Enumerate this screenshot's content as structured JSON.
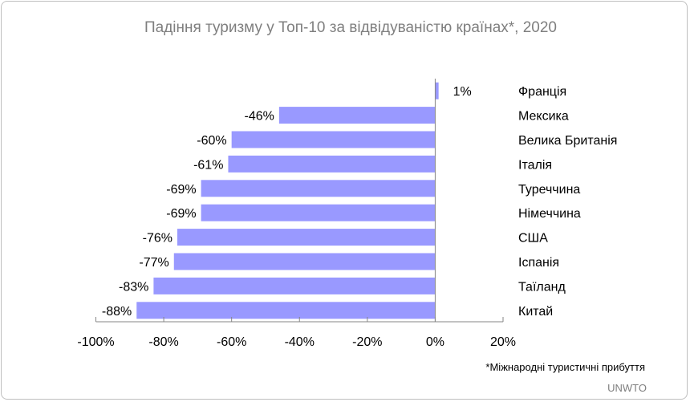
{
  "chart_data": {
    "type": "bar",
    "orientation": "horizontal",
    "title": "Падіння туризму у Топ-10 за відвідуваністю країнах*, 2020",
    "categories": [
      "Франція",
      "Мексика",
      "Велика Британія",
      "Італія",
      "Туреччина",
      "Німеччина",
      "США",
      "Іспанія",
      "Таїланд",
      "Китай"
    ],
    "values": [
      1,
      -46,
      -60,
      -61,
      -69,
      -69,
      -76,
      -77,
      -83,
      -88
    ],
    "data_labels": [
      "1%",
      "-46%",
      "-60%",
      "-61%",
      "-69%",
      "-69%",
      "-76%",
      "-77%",
      "-83%",
      "-88%"
    ],
    "xlim": [
      -100,
      20
    ],
    "xticks": [
      -100,
      -80,
      -60,
      -40,
      -20,
      0,
      20
    ],
    "xtick_labels": [
      "-100%",
      "-80%",
      "-60%",
      "-40%",
      "-20%",
      "0%",
      "20%"
    ],
    "grid": false,
    "bar_color": "#9999ff",
    "footnote": "*Міжнародні туристичні прибуття",
    "source": "UNWTO"
  }
}
